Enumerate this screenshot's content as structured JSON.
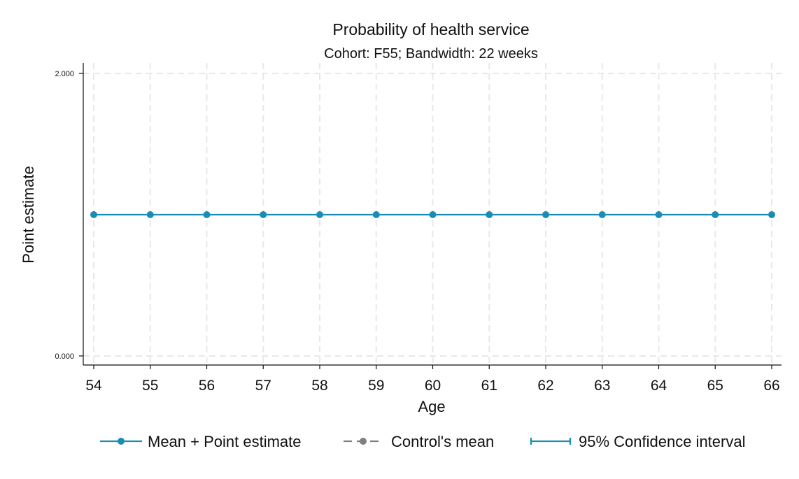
{
  "colors": {
    "background": "#ffffff",
    "series_main": "#1a8db4",
    "series_control": "#7f7f7f",
    "grid": "#e8e8e8",
    "axis": "#111111"
  },
  "chart_data": {
    "type": "line",
    "title": "Probability of health service",
    "subtitle": "Cohort: F55; Bandwidth: 22 weeks",
    "xlabel": "Age",
    "ylabel": "Point estimate",
    "x": [
      54,
      55,
      56,
      57,
      58,
      59,
      60,
      61,
      62,
      63,
      64,
      65,
      66
    ],
    "xlim": [
      54,
      66
    ],
    "ylim": [
      0,
      2
    ],
    "x_ticks": [
      "54",
      "55",
      "56",
      "57",
      "58",
      "59",
      "60",
      "61",
      "62",
      "63",
      "64",
      "65",
      "66"
    ],
    "y_ticks": [
      {
        "value": 0,
        "label": "0.000"
      },
      {
        "value": 2,
        "label": "2.000"
      }
    ],
    "grid": true,
    "grid_style": "dashed",
    "legend_position": "bottom",
    "series": [
      {
        "name": "Mean + Point estimate",
        "values": [
          1,
          1,
          1,
          1,
          1,
          1,
          1,
          1,
          1,
          1,
          1,
          1,
          1
        ],
        "style": "solid",
        "marker": "circle",
        "color": "#1a8db4"
      }
    ],
    "legend": [
      {
        "label": "Mean + Point estimate",
        "style": "line-marker",
        "color": "#1a8db4"
      },
      {
        "label": "Control's mean",
        "style": "dashed-marker",
        "color": "#7f7f7f"
      },
      {
        "label": "95% Confidence interval",
        "style": "capped-bar",
        "color": "#1a8db4"
      }
    ]
  }
}
